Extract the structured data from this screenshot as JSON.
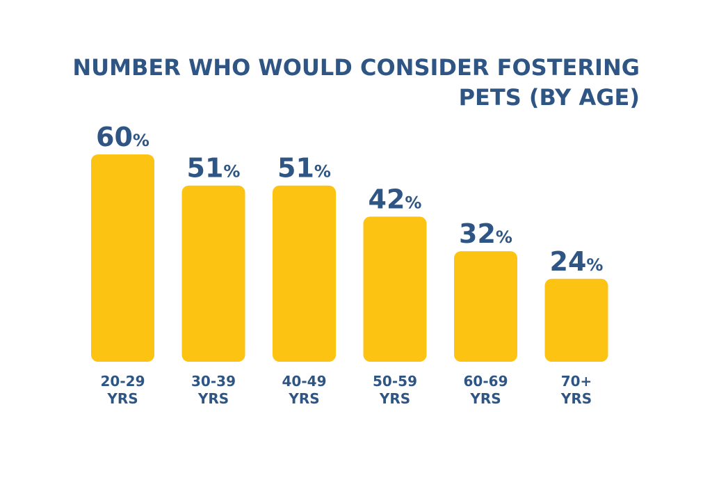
{
  "chart_data": {
    "type": "bar",
    "title": "NUMBER WHO WOULD CONSIDER FOSTERING PETS (BY AGE)",
    "title_lines": [
      "NUMBER WHO WOULD CONSIDER FOSTERING",
      "PETS (BY AGE)"
    ],
    "categories": [
      [
        "20-29",
        "YRS"
      ],
      [
        "30-39",
        "YRS"
      ],
      [
        "40-49",
        "YRS"
      ],
      [
        "50-59",
        "YRS"
      ],
      [
        "60-69",
        "YRS"
      ],
      [
        "70+",
        "YRS"
      ]
    ],
    "values": [
      60,
      51,
      51,
      42,
      32,
      24
    ],
    "value_suffix": "%",
    "ylim": [
      0,
      60
    ],
    "grid": false,
    "colors": {
      "bar": "#fcc312",
      "text": "#2e5583",
      "background": "#ffffff"
    }
  }
}
